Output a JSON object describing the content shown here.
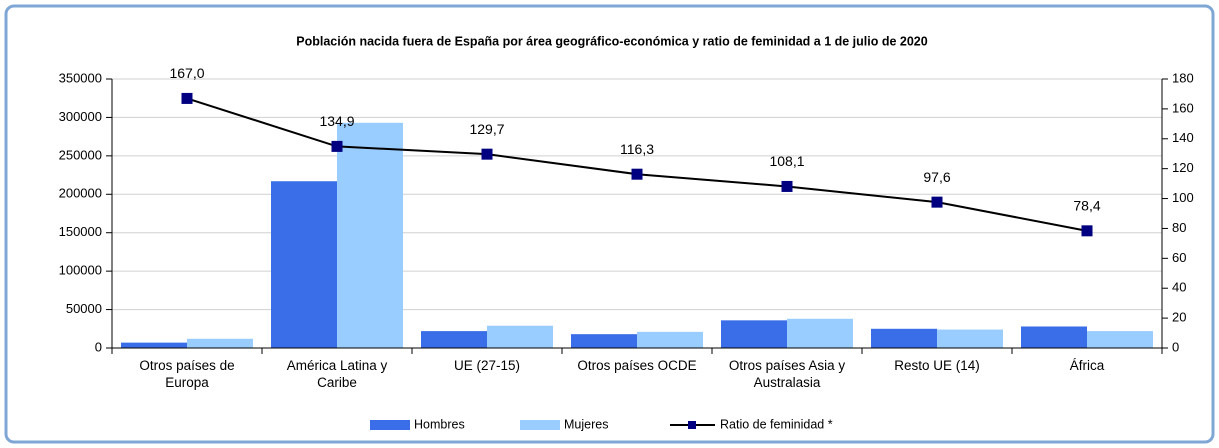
{
  "chart_data": {
    "type": "bar_line",
    "title": "Población nacida fuera de España por área geográfico-económica y ratio de feminidad a 1 de julio de 2020",
    "categories": [
      "Otros países de Europa",
      "América Latina y Caribe",
      "UE (27-15)",
      "Otros países OCDE",
      "Otros países Asia y Australasia",
      "Resto UE (14)",
      "África"
    ],
    "series": [
      {
        "name": "Hombres",
        "color": "#3a6ee8",
        "type": "bar",
        "values": [
          7000,
          217000,
          22000,
          18000,
          36000,
          25000,
          28000
        ]
      },
      {
        "name": "Mujeres",
        "color": "#99ccff",
        "type": "bar",
        "values": [
          12000,
          293000,
          29000,
          21000,
          38000,
          24000,
          22000
        ]
      },
      {
        "name": "Ratio de feminidad *",
        "color": "#000000",
        "marker_color": "#000080",
        "type": "line",
        "axis": "y2",
        "values": [
          167.0,
          134.9,
          129.7,
          116.3,
          108.1,
          97.6,
          78.4
        ],
        "value_labels": [
          "167,0",
          "134,9",
          "129,7",
          "116,3",
          "108,1",
          "97,6",
          "78,4"
        ]
      }
    ],
    "ylim": [
      0,
      350000
    ],
    "yticks": [
      0,
      50000,
      100000,
      150000,
      200000,
      250000,
      300000,
      350000
    ],
    "y2lim": [
      0,
      180
    ],
    "y2ticks": [
      0,
      20,
      40,
      60,
      80,
      100,
      120,
      140,
      160,
      180
    ],
    "grid": true,
    "legend": "bottom"
  }
}
